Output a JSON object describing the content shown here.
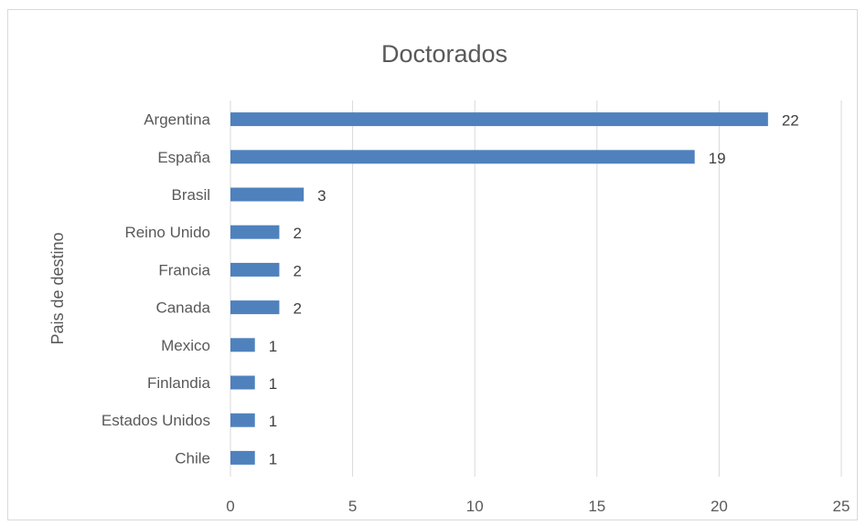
{
  "chart_data": {
    "type": "bar",
    "orientation": "horizontal",
    "title": "Doctorados",
    "xlabel": "",
    "ylabel": "Pais de destino",
    "categories": [
      "Argentina",
      "España",
      "Brasil",
      "Reino Unido",
      "Francia",
      "Canada",
      "Mexico",
      "Finlandia",
      "Estados Unidos",
      "Chile"
    ],
    "values": [
      22,
      19,
      3,
      2,
      2,
      2,
      1,
      1,
      1,
      1
    ],
    "xlim": [
      0,
      25
    ],
    "xticks": [
      "0",
      "5",
      "10",
      "15",
      "20",
      "25"
    ],
    "grid": "vertical",
    "legend": "none",
    "bar_color": "#4f81bd",
    "data_labels": true
  }
}
